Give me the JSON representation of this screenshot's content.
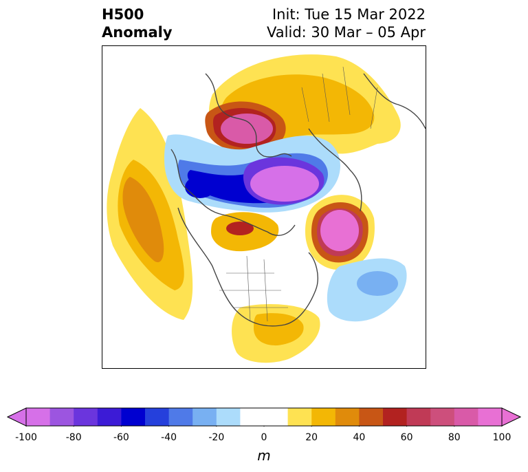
{
  "title": {
    "left_line1": "H500",
    "left_line2": "Anomaly",
    "right_line1": "Init: Tue 15 Mar 2022",
    "right_line2": "Valid: 30 Mar – 05 Apr"
  },
  "colorbar": {
    "unit": "m",
    "min": -100,
    "max": 100,
    "ticks": [
      "-100",
      "-80",
      "-60",
      "-40",
      "-20",
      "0",
      "20",
      "40",
      "60",
      "80",
      "100"
    ],
    "colors": [
      "#d670e8",
      "#9c55e0",
      "#6b35dd",
      "#3c1bd6",
      "#0000d0",
      "#2540dc",
      "#4f7ae8",
      "#78b0f2",
      "#acdcfb",
      "#ffffff",
      "#ffffff",
      "#fee252",
      "#f3b705",
      "#e08b0b",
      "#c85615",
      "#b22220",
      "#c03a56",
      "#cd4f7c",
      "#d95aa8",
      "#e870d4"
    ]
  }
}
